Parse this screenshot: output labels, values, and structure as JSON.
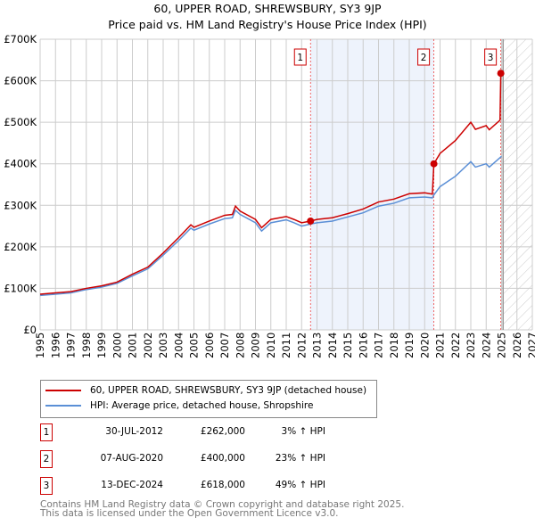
{
  "title": "60, UPPER ROAD, SHREWSBURY, SY3 9JP",
  "subtitle": "Price paid vs. HM Land Registry's House Price Index (HPI)",
  "chart_data": {
    "type": "line",
    "xlim": [
      1995,
      2027
    ],
    "ylim": [
      0,
      700000
    ],
    "x_ticks": [
      "1995",
      "1996",
      "1997",
      "1998",
      "1999",
      "2000",
      "2001",
      "2002",
      "2003",
      "2004",
      "2005",
      "2006",
      "2007",
      "2008",
      "2009",
      "2010",
      "2011",
      "2012",
      "2013",
      "2014",
      "2015",
      "2016",
      "2017",
      "2018",
      "2019",
      "2020",
      "2021",
      "2022",
      "2023",
      "2024",
      "2025",
      "2026",
      "2027"
    ],
    "y_ticks": [
      {
        "v": 0,
        "label": "£0"
      },
      {
        "v": 100000,
        "label": "£100K"
      },
      {
        "v": 200000,
        "label": "£200K"
      },
      {
        "v": 300000,
        "label": "£300K"
      },
      {
        "v": 400000,
        "label": "£400K"
      },
      {
        "v": 500000,
        "label": "£500K"
      },
      {
        "v": 600000,
        "label": "£600K"
      },
      {
        "v": 700000,
        "label": "£700K"
      }
    ],
    "grid": true,
    "series": [
      {
        "name": "60, UPPER ROAD, SHREWSBURY, SY3 9JP (detached house)",
        "color": "#cc0000",
        "x": [
          1995,
          1996,
          1997,
          1998,
          1999,
          2000,
          2001,
          2002,
          2003,
          2004,
          2004.8,
          2005,
          2006,
          2007,
          2007.5,
          2007.7,
          2008,
          2009,
          2009.4,
          2010,
          2011,
          2011.5,
          2012,
          2012.58,
          2013,
          2014,
          2015,
          2016,
          2017,
          2018,
          2019,
          2020,
          2020.5,
          2020.6,
          2021,
          2022,
          2023,
          2023.3,
          2024,
          2024.2,
          2024.9,
          2024.95
        ],
        "y": [
          86000,
          89000,
          92000,
          100000,
          106000,
          115000,
          134000,
          151000,
          185000,
          222000,
          253000,
          247000,
          262000,
          276000,
          278000,
          298000,
          286000,
          266000,
          246000,
          266000,
          273000,
          266000,
          258000,
          262000,
          266000,
          270000,
          280000,
          291000,
          308000,
          315000,
          328000,
          330000,
          327000,
          400000,
          425000,
          456000,
          500000,
          483000,
          492000,
          482000,
          505000,
          618000
        ]
      },
      {
        "name": "HPI: Average price, detached house, Shropshire",
        "color": "#5b8fd6",
        "x": [
          1995,
          1996,
          1997,
          1998,
          1999,
          2000,
          2001,
          2002,
          2003,
          2004,
          2004.8,
          2005,
          2006,
          2007,
          2007.5,
          2007.7,
          2008,
          2009,
          2009.4,
          2010,
          2011,
          2011.5,
          2012,
          2012.58,
          2013,
          2014,
          2015,
          2016,
          2017,
          2018,
          2019,
          2020,
          2020.5,
          2020.6,
          2021,
          2022,
          2023,
          2023.3,
          2024,
          2024.2,
          2025
        ],
        "y": [
          83000,
          86000,
          89000,
          97000,
          103000,
          112000,
          130000,
          147000,
          180000,
          215000,
          245000,
          240000,
          255000,
          268000,
          270000,
          288000,
          278000,
          258000,
          238000,
          258000,
          265000,
          258000,
          250000,
          255000,
          258000,
          262000,
          272000,
          282000,
          298000,
          305000,
          318000,
          320000,
          318000,
          325000,
          345000,
          370000,
          405000,
          392000,
          400000,
          392000,
          418000
        ]
      }
    ],
    "sales": [
      {
        "n": "1",
        "x": 2012.58,
        "y": 262000
      },
      {
        "n": "2",
        "x": 2020.6,
        "y": 400000
      },
      {
        "n": "3",
        "x": 2024.95,
        "y": 618000
      }
    ],
    "shaded_range": [
      2012.58,
      2020.6
    ],
    "forecast_hatch_from": 2025.1
  },
  "legend": {
    "red": "60, UPPER ROAD, SHREWSBURY, SY3 9JP (detached house)",
    "blue": "HPI: Average price, detached house, Shropshire"
  },
  "sales_table": [
    {
      "n": "1",
      "date": "30-JUL-2012",
      "price": "£262,000",
      "hpi": "3% ↑ HPI"
    },
    {
      "n": "2",
      "date": "07-AUG-2020",
      "price": "£400,000",
      "hpi": "23% ↑ HPI"
    },
    {
      "n": "3",
      "date": "13-DEC-2024",
      "price": "£618,000",
      "hpi": "49% ↑ HPI"
    }
  ],
  "footer": {
    "line1": "Contains HM Land Registry data © Crown copyright and database right 2025.",
    "line2": "This data is licensed under the Open Government Licence v3.0."
  }
}
